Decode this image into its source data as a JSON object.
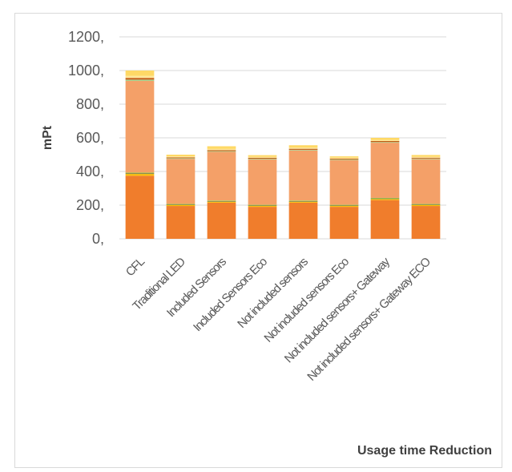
{
  "chart_data": {
    "type": "bar",
    "stacked": true,
    "title": "",
    "xlabel": "Usage time Reduction",
    "ylabel": "mPt",
    "ylim": [
      0,
      1200
    ],
    "yticks": [
      "0,",
      "200,",
      "400,",
      "600,",
      "800,",
      "1000,",
      "1200,"
    ],
    "grid": true,
    "categories": [
      "CFL",
      "Traditional LED",
      "Included Sensors",
      "Included Sensors Eco",
      "Not included sensors",
      "Not included sensors Eco",
      "Not included sensors+ Gateway",
      "Not included sensors+ Gateway ECO"
    ],
    "series": [
      {
        "color": "#f07d2c",
        "values": [
          375,
          195,
          215,
          190,
          215,
          190,
          230,
          195
        ]
      },
      {
        "color": "#ffc000",
        "values": [
          10,
          5,
          5,
          5,
          5,
          5,
          6,
          5
        ]
      },
      {
        "color": "#7f7f40",
        "values": [
          5,
          4,
          4,
          4,
          4,
          4,
          4,
          4
        ]
      },
      {
        "color": "#92d050",
        "values": [
          3,
          3,
          3,
          3,
          3,
          3,
          3,
          3
        ]
      },
      {
        "color": "#f4a068",
        "values": [
          545,
          268,
          290,
          270,
          298,
          265,
          328,
          266
        ]
      },
      {
        "color": "#a9d18e",
        "values": [
          8,
          4,
          4,
          4,
          4,
          4,
          4,
          4
        ]
      },
      {
        "color": "#c55a11",
        "values": [
          10,
          5,
          6,
          5,
          6,
          5,
          6,
          5
        ]
      },
      {
        "color": "#ffe699",
        "values": [
          12,
          6,
          7,
          6,
          7,
          6,
          7,
          6
        ]
      },
      {
        "color": "#ffd966",
        "values": [
          32,
          10,
          16,
          10,
          14,
          8,
          12,
          10
        ]
      }
    ]
  }
}
